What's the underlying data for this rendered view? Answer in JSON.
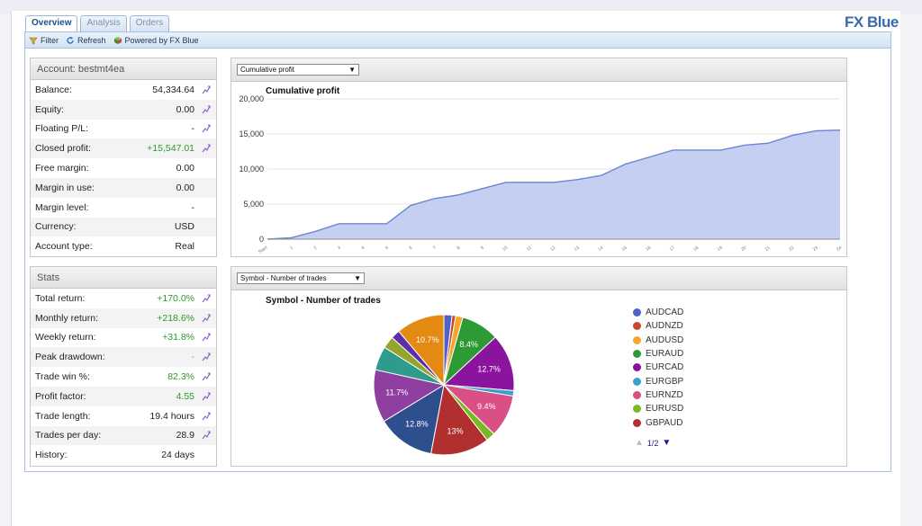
{
  "tabs": [
    {
      "label": "Overview",
      "active": true
    },
    {
      "label": "Analysis",
      "active": false
    },
    {
      "label": "Orders",
      "active": false
    }
  ],
  "brand": "FX Blue",
  "toolbar": {
    "filter": "Filter",
    "refresh": "Refresh",
    "powered": "Powered by FX Blue"
  },
  "account": {
    "title": "Account: bestmt4ea",
    "rows": [
      {
        "label": "Balance:",
        "value": "54,334.64",
        "color": "normal",
        "link": true
      },
      {
        "label": "Equity:",
        "value": "0.00",
        "color": "normal",
        "link": true
      },
      {
        "label": "Floating P/L:",
        "value": "-",
        "color": "normal",
        "link": true
      },
      {
        "label": "Closed profit:",
        "value": "+15,547.01",
        "color": "green",
        "link": true
      },
      {
        "label": "Free margin:",
        "value": "0.00",
        "color": "normal",
        "link": false
      },
      {
        "label": "Margin in use:",
        "value": "0.00",
        "color": "normal",
        "link": false
      },
      {
        "label": "Margin level:",
        "value": "-",
        "color": "normal",
        "link": false
      },
      {
        "label": "Currency:",
        "value": "USD",
        "color": "normal",
        "link": false
      },
      {
        "label": "Account type:",
        "value": "Real",
        "color": "normal",
        "link": false
      }
    ]
  },
  "stats": {
    "title": "Stats",
    "rows": [
      {
        "label": "Total return:",
        "value": "+170.0%",
        "color": "green",
        "link": true
      },
      {
        "label": "Monthly return:",
        "value": "+218.6%",
        "color": "green",
        "link": true
      },
      {
        "label": "Weekly return:",
        "value": "+31.8%",
        "color": "green",
        "link": true
      },
      {
        "label": "Peak drawdown:",
        "value": "-",
        "color": "grey",
        "link": true
      },
      {
        "label": "Trade win %:",
        "value": "82.3%",
        "color": "green",
        "link": true
      },
      {
        "label": "Profit factor:",
        "value": "4.55",
        "color": "green",
        "link": true
      },
      {
        "label": "Trade length:",
        "value": "19.4 hours",
        "color": "normal",
        "link": true
      },
      {
        "label": "Trades per day:",
        "value": "28.9",
        "color": "normal",
        "link": true
      },
      {
        "label": "History:",
        "value": "24 days",
        "color": "normal",
        "link": false
      }
    ]
  },
  "profit_panel": {
    "select_value": "Cumulative profit",
    "title": "Cumulative profit"
  },
  "symbol_panel": {
    "select_value": "Symbol - Number of trades",
    "title": "Symbol - Number of trades",
    "pager": "1/2"
  },
  "colors": {
    "accent": "#3a6aa8",
    "green": "#2a9a2a",
    "area_fill": "#c5cff2",
    "area_line": "#6d86d1"
  },
  "chart_data": [
    {
      "type": "area",
      "title": "Cumulative profit",
      "ylim": [
        0,
        20000
      ],
      "yticks": [
        "0",
        "5,000",
        "10,000",
        "15,000",
        "20,000"
      ],
      "x": [
        "Start",
        "1",
        "2",
        "3",
        "4",
        "5",
        "6",
        "7",
        "8",
        "9",
        "10",
        "11",
        "12",
        "13",
        "14",
        "15",
        "16",
        "17",
        "18",
        "19",
        "20",
        "21",
        "22",
        "23",
        "24"
      ],
      "values": [
        0,
        200,
        1100,
        2200,
        2200,
        2200,
        4800,
        5800,
        6300,
        7200,
        8100,
        8100,
        8100,
        8500,
        9100,
        10700,
        11700,
        12700,
        12700,
        12700,
        13400,
        13700,
        14800,
        15450,
        15547
      ],
      "grid": true
    },
    {
      "type": "pie",
      "title": "Symbol - Number of trades",
      "legend_position": "right",
      "slices": [
        {
          "name": "AUDCAD",
          "value": 1.8,
          "color": "#4f62c6",
          "label": ""
        },
        {
          "name": "AUDNZD",
          "value": 0.8,
          "color": "#c84a2e",
          "label": ""
        },
        {
          "name": "AUDUSD",
          "value": 1.6,
          "color": "#f4a72a",
          "label": ""
        },
        {
          "name": "EURAUD",
          "value": 8.4,
          "color": "#2e9a36",
          "label": "8.4%"
        },
        {
          "name": "EURCAD",
          "value": 12.7,
          "color": "#8b149e",
          "label": "12.7%"
        },
        {
          "name": "EURGBP",
          "value": 1.2,
          "color": "#3d9fd0",
          "label": ""
        },
        {
          "name": "EURNZD",
          "value": 9.4,
          "color": "#d94f86",
          "label": "9.4%"
        },
        {
          "name": "EURUSD",
          "value": 2.0,
          "color": "#77bb22",
          "label": ""
        },
        {
          "name": "GBPAUD",
          "value": 13.0,
          "color": "#b22f2f",
          "label": "13%"
        },
        {
          "name": "",
          "value": 12.8,
          "color": "#2e4f8e",
          "label": "12.8%"
        },
        {
          "name": "",
          "value": 11.7,
          "color": "#8e3f9f",
          "label": "11.7%"
        },
        {
          "name": "",
          "value": 5.3,
          "color": "#2e9b8d",
          "label": ""
        },
        {
          "name": "",
          "value": 2.7,
          "color": "#93a52a",
          "label": ""
        },
        {
          "name": "",
          "value": 2.0,
          "color": "#5a2fa8",
          "label": ""
        },
        {
          "name": "",
          "value": 10.7,
          "color": "#e38a12",
          "label": "10.7%"
        }
      ]
    }
  ]
}
